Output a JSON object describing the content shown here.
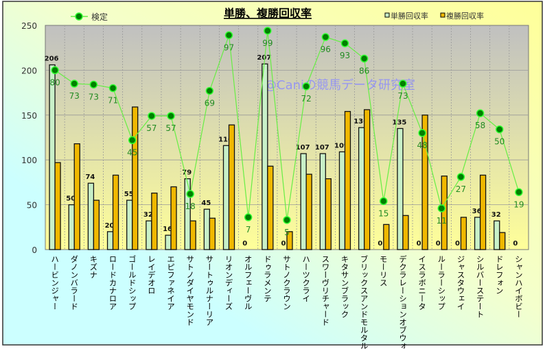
{
  "chart_data": {
    "type": "bar",
    "title": "単勝、複勝回収率",
    "watermark": "@Caniの競馬データ研究室",
    "xlabel": "",
    "ylabel": "",
    "ylim": [
      0,
      250
    ],
    "yticks": [
      0,
      50,
      100,
      150,
      200,
      250
    ],
    "grid": true,
    "legend_placement": "top",
    "categories": [
      "ハービンジャー",
      "ダノンバラード",
      "キズナ",
      "ロードカナロア",
      "ゴールドシップ",
      "レイデオロ",
      "エピファネイア",
      "サトノダイヤモンド",
      "サートゥルナーリア",
      "リオンディーズ",
      "オルフェーヴル",
      "ドゥラメンテ",
      "サトノクラウン",
      "ハーツクライ",
      "スワーヴリチャード",
      "キタサンブラック",
      "ブリックスアンドモルタル",
      "モーリス",
      "デクラレーションオブウォー",
      "イスラボニータ",
      "ルーラーシップ",
      "ジャスタウェイ",
      "シルバーステート",
      "ドレフォン",
      "シャンハイボビー"
    ],
    "series": [
      {
        "name": "単勝回収率",
        "type": "bar",
        "color": "#c8f0c8",
        "values": [
          206,
          50,
          74,
          20,
          55,
          32,
          16,
          79,
          45,
          116,
          0,
          207,
          0,
          107,
          107,
          109,
          136,
          0,
          135,
          0,
          0,
          0,
          36,
          32,
          0
        ]
      },
      {
        "name": "複勝回収率",
        "type": "bar",
        "color": "#f0b800",
        "values": [
          97,
          118,
          55,
          83,
          159,
          63,
          70,
          32,
          35,
          139,
          0,
          93,
          20,
          84,
          79,
          154,
          156,
          28,
          38,
          150,
          82,
          36,
          83,
          19,
          0
        ]
      },
      {
        "name": "検定",
        "type": "line",
        "color": "#66ee44",
        "marker_color": "#008000",
        "values": [
          200,
          185,
          184,
          180,
          122,
          149,
          149,
          62,
          177,
          239,
          36,
          244,
          33,
          182,
          237,
          230,
          213,
          54,
          185,
          130,
          46,
          81,
          152,
          134,
          64
        ],
        "labels": [
          80,
          73,
          73,
          71,
          45,
          57,
          57,
          18,
          69,
          97,
          7,
          99,
          5,
          72,
          96,
          93,
          86,
          15,
          73,
          48,
          11,
          27,
          58,
          50,
          19
        ]
      }
    ]
  }
}
